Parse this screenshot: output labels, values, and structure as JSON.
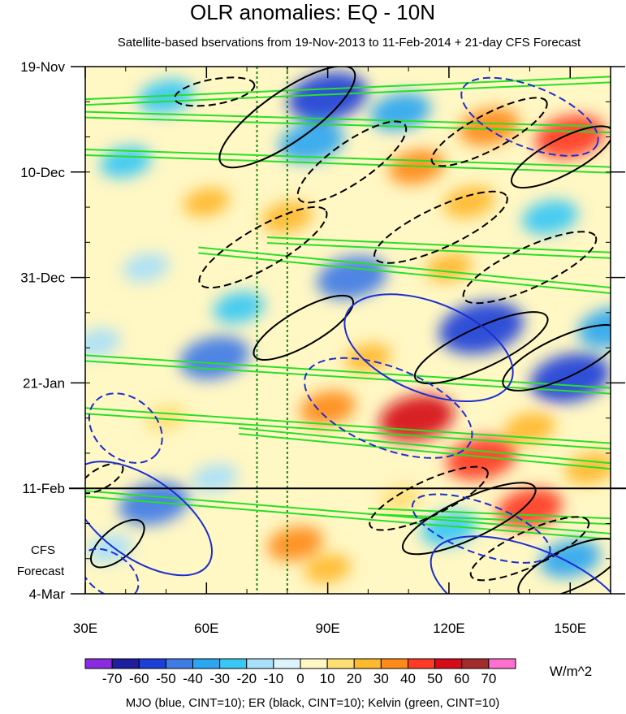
{
  "chart_data": {
    "type": "heatmap",
    "title": "OLR anomalies: EQ - 10N",
    "subtitle": "Satellite-based bservations from 19-Nov-2013 to 11-Feb-2014 + 21-day CFS Forecast",
    "x_ticks": [
      {
        "value": 30,
        "label": "30E"
      },
      {
        "value": 60,
        "label": "60E"
      },
      {
        "value": 90,
        "label": "90E"
      },
      {
        "value": 120,
        "label": "120E"
      },
      {
        "value": 150,
        "label": "150E"
      }
    ],
    "xlim": [
      30,
      160
    ],
    "y_axis_days": [
      0,
      105
    ],
    "y_ticks": [
      {
        "day": 0,
        "label": "19-Nov"
      },
      {
        "day": 21,
        "label": "10-Dec"
      },
      {
        "day": 42,
        "label": "31-Dec"
      },
      {
        "day": 63,
        "label": "21-Jan"
      },
      {
        "day": 84,
        "label": "11-Feb"
      },
      {
        "day": 105,
        "label": "4-Mar"
      }
    ],
    "forecast_start_day": 84,
    "forecast_label": [
      "CFS",
      "Forecast"
    ],
    "reference_lines_lon": [
      72.5,
      80
    ],
    "units": "W/m^2",
    "levels": [
      -70,
      -60,
      -50,
      -40,
      -30,
      -20,
      -10,
      0,
      10,
      20,
      30,
      40,
      50,
      60,
      70
    ],
    "level_labels": [
      "-70",
      "-60",
      "-50",
      "-40",
      "-30",
      "-20",
      "-10",
      "0",
      "10",
      "20",
      "30",
      "40",
      "50",
      "60",
      "70"
    ],
    "colors": [
      "#8a2be2",
      "#1e1e9e",
      "#1c3fd8",
      "#3f7be6",
      "#2ba6f0",
      "#37c8f5",
      "#a8dff9",
      "#ddf4fd",
      "#fff7c4",
      "#ffde73",
      "#ffb92e",
      "#ff8a1a",
      "#ff3a24",
      "#d60b19",
      "#a42b2b",
      "#ff6fcf"
    ],
    "caption": "MJO (blue, CINT=10); ER (black, CINT=10); Kelvin (green, CINT=10)",
    "field_features": [
      {
        "lon": 90,
        "day": 6,
        "value": -55
      },
      {
        "lon": 86,
        "day": 15,
        "value": -40
      },
      {
        "lon": 50,
        "day": 6,
        "value": -30
      },
      {
        "lon": 40,
        "day": 19,
        "value": -25
      },
      {
        "lon": 108,
        "day": 9,
        "value": -35
      },
      {
        "lon": 150,
        "day": 14,
        "value": 45
      },
      {
        "lon": 130,
        "day": 12,
        "value": 35
      },
      {
        "lon": 112,
        "day": 20,
        "value": 30
      },
      {
        "lon": 80,
        "day": 30,
        "value": 25
      },
      {
        "lon": 60,
        "day": 27,
        "value": 20
      },
      {
        "lon": 125,
        "day": 27,
        "value": 25
      },
      {
        "lon": 145,
        "day": 30,
        "value": -30
      },
      {
        "lon": 96,
        "day": 42,
        "value": -45
      },
      {
        "lon": 68,
        "day": 48,
        "value": -25
      },
      {
        "lon": 45,
        "day": 40,
        "value": -20
      },
      {
        "lon": 120,
        "day": 40,
        "value": 20
      },
      {
        "lon": 128,
        "day": 52,
        "value": -60
      },
      {
        "lon": 150,
        "day": 62,
        "value": -55
      },
      {
        "lon": 160,
        "day": 52,
        "value": -40
      },
      {
        "lon": 62,
        "day": 58,
        "value": -45
      },
      {
        "lon": 33,
        "day": 55,
        "value": -20
      },
      {
        "lon": 100,
        "day": 58,
        "value": 20
      },
      {
        "lon": 112,
        "day": 70,
        "value": 50
      },
      {
        "lon": 90,
        "day": 68,
        "value": 30
      },
      {
        "lon": 128,
        "day": 78,
        "value": 45
      },
      {
        "lon": 140,
        "day": 72,
        "value": 25
      },
      {
        "lon": 50,
        "day": 70,
        "value": 15
      },
      {
        "lon": 47,
        "day": 87,
        "value": -45
      },
      {
        "lon": 36,
        "day": 96,
        "value": -20
      },
      {
        "lon": 62,
        "day": 82,
        "value": -20
      },
      {
        "lon": 150,
        "day": 98,
        "value": -35
      },
      {
        "lon": 82,
        "day": 95,
        "value": 30
      },
      {
        "lon": 140,
        "day": 88,
        "value": 40
      },
      {
        "lon": 155,
        "day": 80,
        "value": 25
      },
      {
        "lon": 120,
        "day": 92,
        "value": -30
      },
      {
        "lon": 90,
        "day": 100,
        "value": 20
      },
      {
        "lon": 108,
        "day": 86,
        "value": 15
      }
    ],
    "contours": {
      "mjo": [
        {
          "lon": 140,
          "day": 10,
          "rx": 18,
          "ry": 6,
          "rot": 22,
          "dashed": true
        },
        {
          "lon": 115,
          "day": 56,
          "rx": 22,
          "ry": 9,
          "rot": 22,
          "dashed": false
        },
        {
          "lon": 105,
          "day": 68,
          "rx": 22,
          "ry": 8,
          "rot": 22,
          "dashed": true
        },
        {
          "lon": 40,
          "day": 72,
          "rx": 10,
          "ry": 6,
          "rot": 40,
          "dashed": true
        },
        {
          "lon": 44,
          "day": 90,
          "rx": 20,
          "ry": 8,
          "rot": 35,
          "dashed": false
        },
        {
          "lon": 36,
          "day": 101,
          "rx": 8,
          "ry": 4,
          "rot": 35,
          "dashed": true
        },
        {
          "lon": 128,
          "day": 92,
          "rx": 18,
          "ry": 5,
          "rot": 20,
          "dashed": true
        },
        {
          "lon": 140,
          "day": 105,
          "rx": 26,
          "ry": 9,
          "rot": 22,
          "dashed": false
        }
      ],
      "er": [
        {
          "lon": 62,
          "day": 5,
          "rx": 10,
          "ry": 2.5,
          "rot": -10,
          "dashed": true
        },
        {
          "lon": 80,
          "day": 10,
          "rx": 20,
          "ry": 5,
          "rot": -35,
          "dashed": false
        },
        {
          "lon": 96,
          "day": 19,
          "rx": 16,
          "ry": 4,
          "rot": -35,
          "dashed": true
        },
        {
          "lon": 130,
          "day": 13,
          "rx": 16,
          "ry": 3.5,
          "rot": -28,
          "dashed": true
        },
        {
          "lon": 148,
          "day": 18,
          "rx": 14,
          "ry": 3.5,
          "rot": -28,
          "dashed": false
        },
        {
          "lon": 74,
          "day": 36,
          "rx": 18,
          "ry": 4,
          "rot": -30,
          "dashed": true
        },
        {
          "lon": 84,
          "day": 52,
          "rx": 14,
          "ry": 3.5,
          "rot": -30,
          "dashed": false
        },
        {
          "lon": 118,
          "day": 32,
          "rx": 18,
          "ry": 4,
          "rot": -25,
          "dashed": true
        },
        {
          "lon": 140,
          "day": 40,
          "rx": 18,
          "ry": 4,
          "rot": -25,
          "dashed": true
        },
        {
          "lon": 128,
          "day": 56,
          "rx": 18,
          "ry": 4,
          "rot": -25,
          "dashed": false
        },
        {
          "lon": 148,
          "day": 58,
          "rx": 16,
          "ry": 4,
          "rot": -25,
          "dashed": false
        },
        {
          "lon": 115,
          "day": 86,
          "rx": 16,
          "ry": 3.5,
          "rot": -25,
          "dashed": true
        },
        {
          "lon": 125,
          "day": 90,
          "rx": 18,
          "ry": 4,
          "rot": -25,
          "dashed": false
        },
        {
          "lon": 140,
          "day": 96,
          "rx": 16,
          "ry": 3.5,
          "rot": -25,
          "dashed": true
        },
        {
          "lon": 150,
          "day": 100,
          "rx": 14,
          "ry": 4,
          "rot": -25,
          "dashed": false
        },
        {
          "lon": 38,
          "day": 95,
          "rx": 8,
          "ry": 3,
          "rot": -40,
          "dashed": false
        },
        {
          "lon": 34,
          "day": 82,
          "rx": 6,
          "ry": 2,
          "rot": -30,
          "dashed": true
        }
      ],
      "kelvin": [
        {
          "lon1": 30,
          "day1": 6.5,
          "lon2": 160,
          "day2": 2
        },
        {
          "lon1": 30,
          "day1": 9,
          "lon2": 160,
          "day2": 12
        },
        {
          "lon1": 30,
          "day1": 16.5,
          "lon2": 160,
          "day2": 20
        },
        {
          "lon1": 75,
          "day1": 34,
          "lon2": 160,
          "day2": 37
        },
        {
          "lon1": 58,
          "day1": 36,
          "lon2": 160,
          "day2": 44
        },
        {
          "lon1": 30,
          "day1": 57.5,
          "lon2": 160,
          "day2": 64
        },
        {
          "lon1": 30,
          "day1": 68,
          "lon2": 160,
          "day2": 75
        },
        {
          "lon1": 68,
          "day1": 72,
          "lon2": 160,
          "day2": 79
        },
        {
          "lon1": 30,
          "day1": 84.5,
          "lon2": 160,
          "day2": 93
        },
        {
          "lon1": 100,
          "day1": 88,
          "lon2": 160,
          "day2": 90
        }
      ]
    }
  },
  "colorbar": {
    "units_label": "W/m^2"
  },
  "contour_colors": {
    "mjo": "#1c2fd0",
    "er": "#000000",
    "kelvin": "#27e027",
    "reference": "#1a8a1a"
  }
}
